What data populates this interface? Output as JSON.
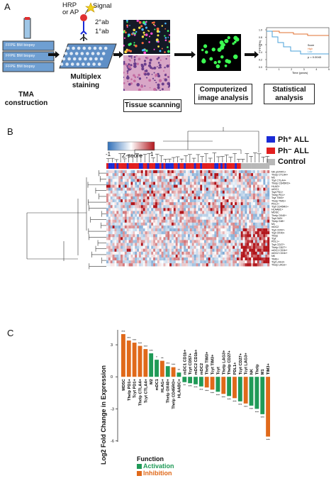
{
  "panelA": {
    "letter": "A",
    "hrp_label": "HRP\nor AP",
    "signal_label": "Signal",
    "ab2_label": "2°ab",
    "ab1_label": "1°ab",
    "ffpe_label": "FFPE BM biopsy",
    "steps": [
      "TMA\nconstruction",
      "Multiplex\nstaining",
      "Tissue scanning",
      "Computerized\nimage analysis",
      "Statistical\nanalysis"
    ],
    "km_ylabel": "PFS (%)",
    "km_xlabel": "Time (years)",
    "km_legend_title": "Score",
    "km_legend_items": [
      "High",
      "Low"
    ],
    "km_pvalue": "p = 0.0043",
    "km_yticks": [
      "1.0",
      "0.8",
      "0.6",
      "0.4",
      "0.2",
      "0.0"
    ],
    "km_xticks": [
      "0",
      "1",
      "2",
      "3",
      "4",
      "5"
    ]
  },
  "panelB": {
    "letter": "B",
    "scale_min": "-1",
    "scale_max": "1",
    "scale_label": "Z-score",
    "legend": [
      {
        "label": "Ph⁺ ALL",
        "color": "#1a2bd6"
      },
      {
        "label": "Ph⁻ ALL",
        "color": "#e21f1f"
      },
      {
        "label": "Control",
        "color": "#b8b8b8"
      }
    ],
    "row_labels": [
      "NK pSTAT1+",
      "Thelp CTLA4+",
      "M2",
      "Tcyt CTLA4+",
      "Thelp CD45RO+",
      "HLAG+",
      "mDC1",
      "Tcyt PD1+",
      "Thelp PD1+",
      "Tcyt TIM3+",
      "Thelp TIM3+",
      "PDL2+",
      "Tcyt CD45RO+",
      "HLAABC+",
      "MDSC",
      "Thelp OX40+",
      "Tcyt GrB+",
      "Thelp GrB+",
      "M1",
      "mDC2",
      "Tcyt CD57+",
      "Tcyt OX40+",
      "Thelp",
      "Tcyt",
      "PDL1+",
      "Tcyt CD27+",
      "Thelp CD27+",
      "mDC1 CD1b+",
      "mDC2 CD1b+",
      "NK",
      "TIM3+",
      "Tcyt LAG3+",
      "Thelp LAG3+"
    ]
  },
  "panelC": {
    "letter": "C",
    "ylabel": "Log2 Fold Change in Expression",
    "legend_title": "Function",
    "legend_items": [
      {
        "label": "Activation",
        "color": "#1f9a57"
      },
      {
        "label": "Inhibition",
        "color": "#e0691a"
      }
    ],
    "chart_data": {
      "type": "bar",
      "yticks": [
        3,
        0,
        -3,
        -6
      ],
      "ylim": [
        -6.1,
        4.4
      ],
      "categories": [
        "MDSC",
        "Thelp PD1+",
        "Tcyt PD1+",
        "Thelp CTLA4+",
        "Tcyt CTLA4+",
        "M2",
        "mDC1",
        "HLAG+",
        "Thelp OX40+",
        "Thelp CD45RO+",
        "HLAABC+",
        "mDC1 CD1b+",
        "Tcyt CD57+",
        "mDC2 CD1b+",
        "mDC2",
        "Thelp TIM3+",
        "Tcyt TIM3+",
        "Tcyt",
        "Thelp LAG3+",
        "Thelp CD27+",
        "PDL1+",
        "Tcyt CD27+",
        "Tcyt LAG3+",
        "NK",
        "Thelp",
        "M1",
        "TIM3+"
      ],
      "values": [
        4.0,
        3.4,
        3.2,
        2.9,
        2.6,
        2.2,
        1.6,
        1.5,
        1.0,
        0.9,
        0.4,
        -0.5,
        -0.6,
        -0.7,
        -0.9,
        -1.0,
        -1.2,
        -1.4,
        -1.6,
        -1.8,
        -2.0,
        -2.3,
        -2.5,
        -2.7,
        -3.0,
        -3.5,
        -5.6
      ],
      "functions": [
        "inhibition",
        "inhibition",
        "inhibition",
        "inhibition",
        "inhibition",
        "activation",
        "activation",
        "inhibition",
        "activation",
        "inhibition",
        "activation",
        "activation",
        "activation",
        "activation",
        "activation",
        "inhibition",
        "inhibition",
        "activation",
        "inhibition",
        "activation",
        "inhibition",
        "activation",
        "inhibition",
        "activation",
        "activation",
        "activation",
        "inhibition"
      ],
      "significance": [
        "***",
        "***",
        "***",
        "***",
        "***",
        "***",
        "*",
        "**",
        "***",
        "***",
        "**",
        "**",
        "***",
        "***",
        "***",
        "***",
        "***",
        "***",
        "***",
        "***",
        "***",
        "***",
        "***",
        "***",
        "***",
        "***",
        "***"
      ]
    }
  }
}
